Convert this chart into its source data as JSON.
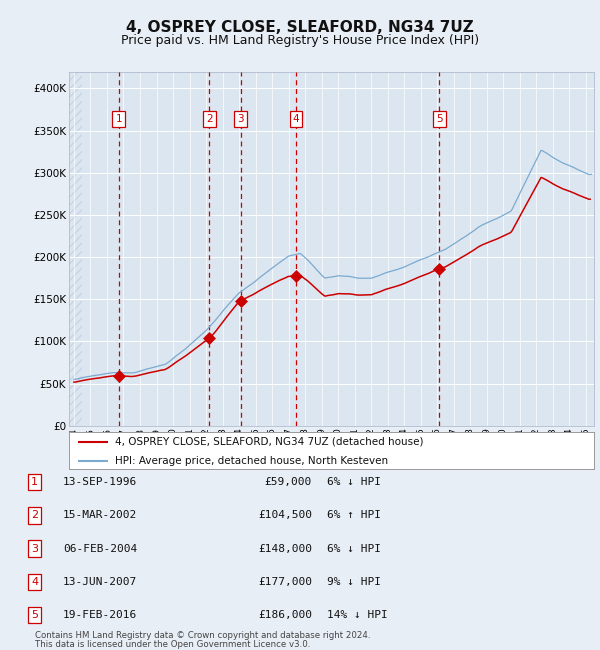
{
  "title": "4, OSPREY CLOSE, SLEAFORD, NG34 7UZ",
  "subtitle": "Price paid vs. HM Land Registry's House Price Index (HPI)",
  "title_fontsize": 11,
  "subtitle_fontsize": 9,
  "bg_color": "#e8eef5",
  "plot_bg_color": "#dce6f0",
  "grid_color": "#ffffff",
  "ylim": [
    0,
    420000
  ],
  "yticks": [
    0,
    50000,
    100000,
    150000,
    200000,
    250000,
    300000,
    350000,
    400000
  ],
  "xlim_start": 1993.7,
  "xlim_end": 2025.5,
  "transactions": [
    {
      "num": 1,
      "date_num": 1996.71,
      "price": 59000,
      "label": "13-SEP-1996",
      "pct": "6%",
      "dir": "↓"
    },
    {
      "num": 2,
      "date_num": 2002.21,
      "price": 104500,
      "label": "15-MAR-2002",
      "pct": "6%",
      "dir": "↑"
    },
    {
      "num": 3,
      "date_num": 2004.09,
      "price": 148000,
      "label": "06-FEB-2004",
      "pct": "6%",
      "dir": "↓"
    },
    {
      "num": 4,
      "date_num": 2007.45,
      "price": 177000,
      "label": "13-JUN-2007",
      "pct": "9%",
      "dir": "↓"
    },
    {
      "num": 5,
      "date_num": 2016.13,
      "price": 186000,
      "label": "19-FEB-2016",
      "pct": "14%",
      "dir": "↓"
    }
  ],
  "legend_entries": [
    "4, OSPREY CLOSE, SLEAFORD, NG34 7UZ (detached house)",
    "HPI: Average price, detached house, North Kesteven"
  ],
  "footer_line1": "Contains HM Land Registry data © Crown copyright and database right 2024.",
  "footer_line2": "This data is licensed under the Open Government Licence v3.0.",
  "property_color": "#cc0000",
  "hpi_color": "#7aaad0",
  "vline_color": "#cc0000",
  "marker_color": "#cc0000",
  "box_edge_color": "#cc0000",
  "hatch_color": "#c8d4e8"
}
